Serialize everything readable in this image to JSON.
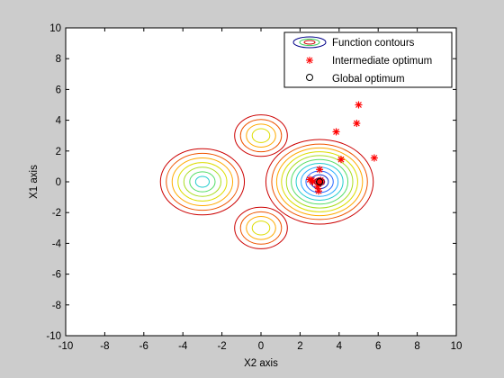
{
  "chart_data": {
    "type": "scatter",
    "title": "",
    "xlabel": "X2 axis",
    "ylabel": "X1 axis",
    "xlim": [
      -10,
      10
    ],
    "ylim": [
      -10,
      10
    ],
    "xticks": [
      -10,
      -8,
      -6,
      -4,
      -2,
      0,
      2,
      4,
      6,
      8,
      10
    ],
    "yticks": [
      -10,
      -8,
      -6,
      -4,
      -2,
      0,
      2,
      4,
      6,
      8,
      10
    ],
    "grid": false,
    "legend_position": "top-right",
    "legend": [
      {
        "label": "Function contours",
        "symbol": "ellipse"
      },
      {
        "label": "Intermediate optimum",
        "symbol": "red-star"
      },
      {
        "label": "Global optimum",
        "symbol": "black-circle"
      }
    ],
    "contour_groups": [
      {
        "center": [
          -3,
          0
        ],
        "radii": [
          2.15,
          1.85,
          1.55,
          1.25,
          0.95,
          0.65,
          0.35
        ],
        "colors": [
          "#cc0000",
          "#ee5500",
          "#ffaa00",
          "#dddd00",
          "#aadd22",
          "#55dd66",
          "#22cccc"
        ]
      },
      {
        "center": [
          3,
          0
        ],
        "radii": [
          2.75,
          2.45,
          2.2,
          1.95,
          1.7,
          1.45,
          1.2,
          0.95,
          0.7,
          0.45,
          0.25
        ],
        "colors": [
          "#cc0000",
          "#ee5500",
          "#ffaa00",
          "#dddd00",
          "#aadd22",
          "#55dd66",
          "#22cccc",
          "#22aaff",
          "#2266ff",
          "#1133cc",
          "#000088"
        ]
      },
      {
        "center": [
          0,
          3
        ],
        "radii": [
          1.35,
          1.05,
          0.75,
          0.45
        ],
        "colors": [
          "#cc0000",
          "#ee5500",
          "#ffaa00",
          "#dddd00"
        ]
      },
      {
        "center": [
          0,
          -3
        ],
        "radii": [
          1.35,
          1.05,
          0.75,
          0.45
        ],
        "colors": [
          "#cc0000",
          "#ee5500",
          "#ffaa00",
          "#dddd00"
        ]
      }
    ],
    "series": [
      {
        "name": "Intermediate optimum",
        "points": [
          [
            5.0,
            5.0
          ],
          [
            4.9,
            3.8
          ],
          [
            3.85,
            3.25
          ],
          [
            5.8,
            1.55
          ],
          [
            4.1,
            1.45
          ],
          [
            3.0,
            0.8
          ],
          [
            2.5,
            0.15
          ],
          [
            2.65,
            0.0
          ],
          [
            2.95,
            0.05
          ],
          [
            3.0,
            -0.05
          ],
          [
            2.9,
            -0.3
          ],
          [
            2.95,
            -0.6
          ],
          [
            3.05,
            0.1
          ],
          [
            3.1,
            0.0
          ],
          [
            2.6,
            0.1
          ]
        ]
      },
      {
        "name": "Global optimum",
        "points": [
          [
            3.0,
            0.0
          ]
        ]
      }
    ]
  }
}
